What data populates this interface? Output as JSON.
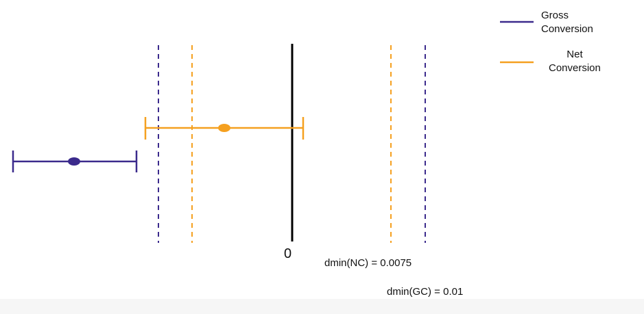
{
  "colors": {
    "gross": "#3b2a8c",
    "net": "#f5a01f",
    "axis": "#000000"
  },
  "zero_label": "0",
  "annotations": {
    "dmin_nc": "dmin(NC) = 0.0075",
    "dmin_gc": "dmin(GC) = 0.01"
  },
  "legend": {
    "gross": {
      "line1": "Gross",
      "line2": "Conversion"
    },
    "net": {
      "line1": "Net",
      "line2": "Conversion"
    }
  }
}
